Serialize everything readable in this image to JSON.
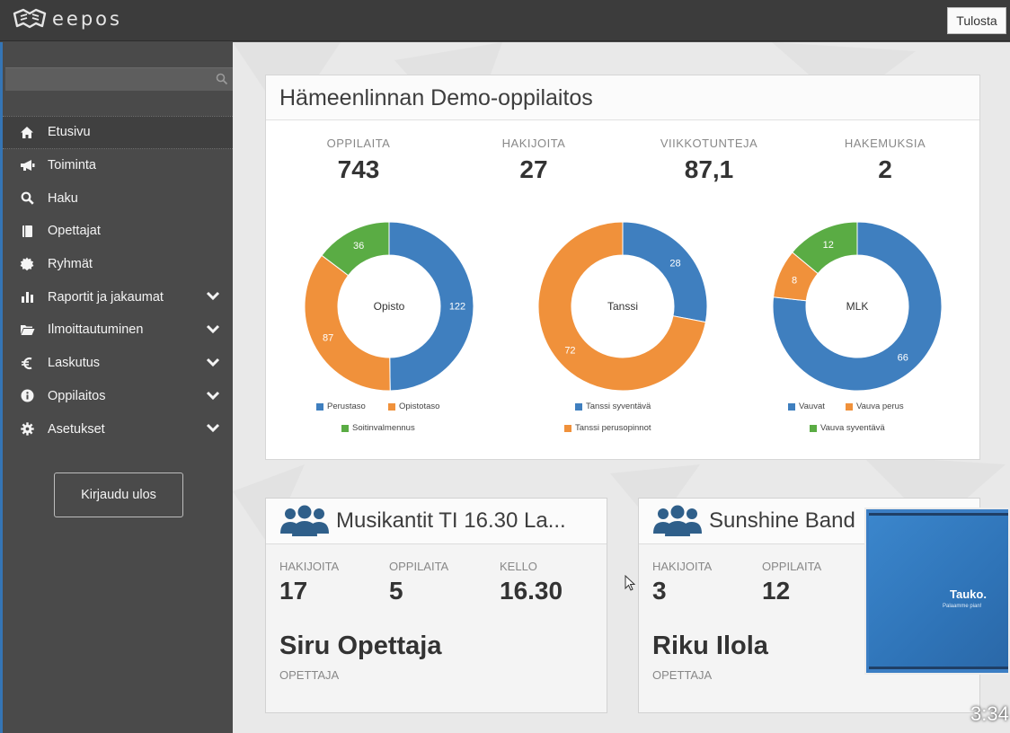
{
  "app": {
    "logo_text": "eepos",
    "print_label": "Tulosta"
  },
  "sidebar": {
    "search": {
      "placeholder": ""
    },
    "items": [
      {
        "label": "Etusivu",
        "icon": "home-icon",
        "active": true,
        "expandable": false
      },
      {
        "label": "Toiminta",
        "icon": "megaphone-icon",
        "active": false,
        "expandable": false
      },
      {
        "label": "Haku",
        "icon": "search-icon",
        "active": false,
        "expandable": false
      },
      {
        "label": "Opettajat",
        "icon": "book-icon",
        "active": false,
        "expandable": false
      },
      {
        "label": "Ryhmät",
        "icon": "badge-icon",
        "active": false,
        "expandable": false
      },
      {
        "label": "Raportit ja jakaumat",
        "icon": "bar-chart-icon",
        "active": false,
        "expandable": true
      },
      {
        "label": "Ilmoittautuminen",
        "icon": "folder-open-icon",
        "active": false,
        "expandable": true
      },
      {
        "label": "Laskutus",
        "icon": "euro-icon",
        "active": false,
        "expandable": true
      },
      {
        "label": "Oppilaitos",
        "icon": "info-icon",
        "active": false,
        "expandable": true
      },
      {
        "label": "Asetukset",
        "icon": "gear-icon",
        "active": false,
        "expandable": true
      }
    ],
    "logout_label": "Kirjaudu ulos"
  },
  "school": {
    "title": "Hämeenlinnan Demo-oppilaitos",
    "stats": [
      {
        "label": "OPPILAITA",
        "value": "743"
      },
      {
        "label": "HAKIJOITA",
        "value": "27"
      },
      {
        "label": "VIIKKOTUNTEJA",
        "value": "87,1"
      },
      {
        "label": "HAKEMUKSIA",
        "value": "2"
      }
    ]
  },
  "colors": {
    "blue": "#3f7fbf",
    "orange": "#f0913b",
    "green": "#5aac44",
    "accent": "#3575b5"
  },
  "chart_data": [
    {
      "type": "pie",
      "center_label": "Opisto",
      "series": [
        {
          "name": "Perustaso",
          "value": 122,
          "color": "#3f7fbf"
        },
        {
          "name": "Opistotaso",
          "value": 87,
          "color": "#f0913b"
        },
        {
          "name": "Soitinvalmennus",
          "value": 36,
          "color": "#5aac44"
        }
      ]
    },
    {
      "type": "pie",
      "center_label": "Tanssi",
      "series": [
        {
          "name": "Tanssi syventävä",
          "value": 28,
          "color": "#3f7fbf"
        },
        {
          "name": "Tanssi perusopinnot",
          "value": 72,
          "color": "#f0913b"
        }
      ]
    },
    {
      "type": "pie",
      "center_label": "MLK",
      "series": [
        {
          "name": "Vauvat",
          "value": 66,
          "color": "#3f7fbf"
        },
        {
          "name": "Vauva perus",
          "value": 8,
          "color": "#f0913b"
        },
        {
          "name": "Vauva syventävä",
          "value": 12,
          "color": "#5aac44"
        }
      ]
    }
  ],
  "groups": [
    {
      "title": "Musikantit TI 16.30 La...",
      "stats": [
        {
          "label": "HAKIJOITA",
          "value": "17"
        },
        {
          "label": "OPPILAITA",
          "value": "5"
        },
        {
          "label": "KELLO",
          "value": "16.30"
        }
      ],
      "teacher": "Siru Opettaja",
      "teacher_label": "OPETTAJA"
    },
    {
      "title": "Sunshine Band",
      "stats": [
        {
          "label": "HAKIJOITA",
          "value": "3"
        },
        {
          "label": "OPPILAITA",
          "value": "12"
        }
      ],
      "teacher": "Riku Ilola",
      "teacher_label": "OPETTAJA"
    }
  ],
  "video": {
    "title": "Tauko.",
    "subtitle": "Palaamme pian!",
    "time": "3:34"
  }
}
